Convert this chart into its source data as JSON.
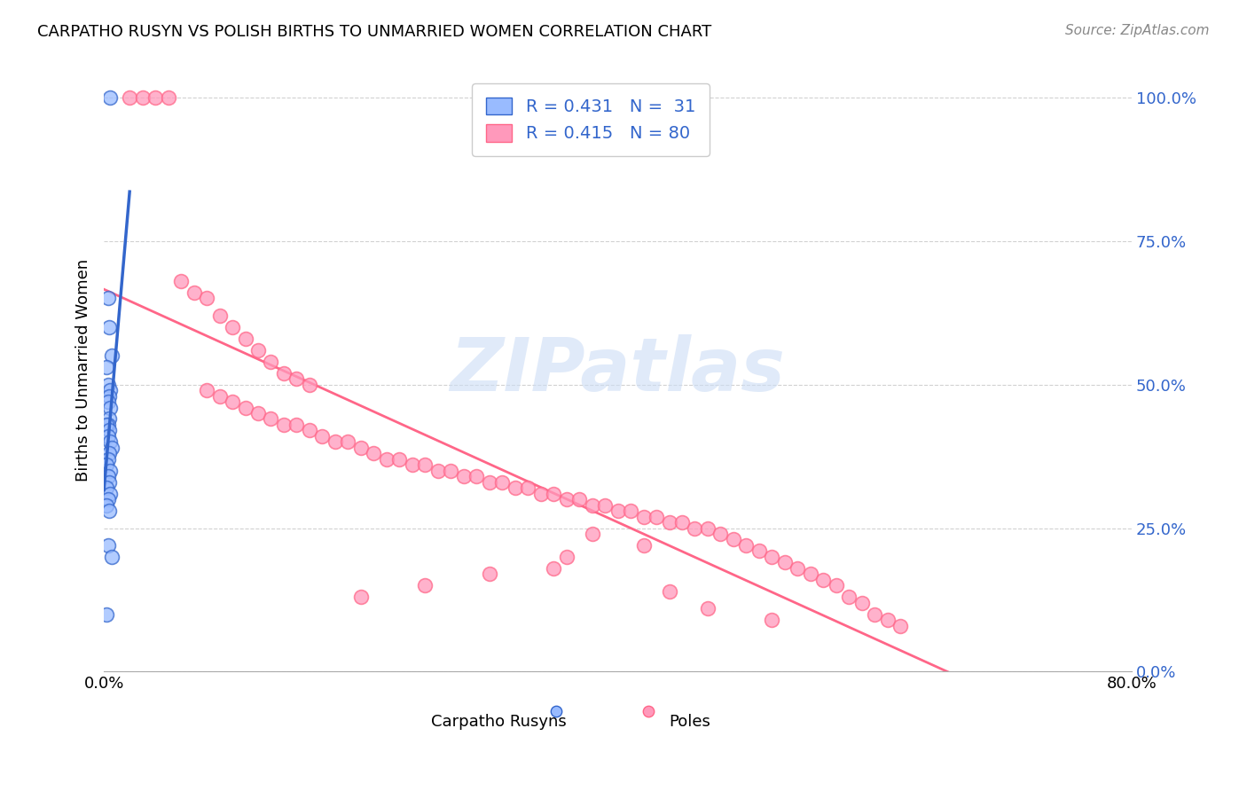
{
  "title": "CARPATHO RUSYN VS POLISH BIRTHS TO UNMARRIED WOMEN CORRELATION CHART",
  "source": "Source: ZipAtlas.com",
  "ylabel": "Births to Unmarried Women",
  "yticks": [
    "0.0%",
    "25.0%",
    "50.0%",
    "75.0%",
    "100.0%"
  ],
  "ytick_vals": [
    0,
    25,
    50,
    75,
    100
  ],
  "xtick_labels": [
    "0.0%",
    "80.0%"
  ],
  "xtick_vals": [
    0,
    80
  ],
  "legend_label1": "Carpatho Rusyns",
  "legend_label2": "Poles",
  "legend_r1": "R = 0.431",
  "legend_n1": "N =  31",
  "legend_r2": "R = 0.415",
  "legend_n2": "N = 80",
  "color_blue": "#99BBFF",
  "color_pink": "#FF99BB",
  "color_blue_line": "#3366CC",
  "color_pink_line": "#FF6688",
  "watermark": "ZIPatlas",
  "carpatho_x": [
    0.5,
    0.3,
    0.4,
    0.6,
    0.2,
    0.3,
    0.5,
    0.4,
    0.3,
    0.5,
    0.4,
    0.3,
    0.2,
    0.4,
    0.3,
    0.5,
    0.6,
    0.4,
    0.3,
    0.2,
    0.5,
    0.3,
    0.4,
    0.2,
    0.5,
    0.3,
    0.2,
    0.4,
    0.3,
    0.6,
    0.2
  ],
  "carpatho_y": [
    100,
    65,
    60,
    55,
    53,
    50,
    49,
    48,
    47,
    46,
    44,
    43,
    43,
    42,
    41,
    40,
    39,
    38,
    37,
    36,
    35,
    34,
    33,
    32,
    31,
    30,
    29,
    28,
    22,
    20,
    10
  ],
  "poles_x": [
    2,
    3,
    4,
    5,
    6,
    7,
    8,
    9,
    10,
    11,
    12,
    13,
    14,
    15,
    16,
    8,
    9,
    10,
    11,
    12,
    13,
    14,
    15,
    16,
    17,
    18,
    19,
    20,
    21,
    22,
    23,
    24,
    25,
    26,
    27,
    28,
    29,
    30,
    31,
    32,
    33,
    34,
    35,
    36,
    37,
    38,
    39,
    40,
    41,
    42,
    43,
    44,
    45,
    46,
    47,
    48,
    49,
    50,
    51,
    52,
    53,
    54,
    55,
    56,
    57,
    58,
    59,
    60,
    61,
    62,
    38,
    42,
    36,
    30,
    25,
    20,
    47,
    52,
    44,
    35
  ],
  "poles_y": [
    100,
    100,
    100,
    100,
    68,
    66,
    65,
    62,
    60,
    58,
    56,
    54,
    52,
    51,
    50,
    49,
    48,
    47,
    46,
    45,
    44,
    43,
    43,
    42,
    41,
    40,
    40,
    39,
    38,
    37,
    37,
    36,
    36,
    35,
    35,
    34,
    34,
    33,
    33,
    32,
    32,
    31,
    31,
    30,
    30,
    29,
    29,
    28,
    28,
    27,
    27,
    26,
    26,
    25,
    25,
    24,
    23,
    22,
    21,
    20,
    19,
    18,
    17,
    16,
    15,
    13,
    12,
    10,
    9,
    8,
    24,
    22,
    20,
    17,
    15,
    13,
    11,
    9,
    14,
    18
  ],
  "xmin": 0,
  "xmax": 80,
  "ymin": 0,
  "ymax": 105
}
